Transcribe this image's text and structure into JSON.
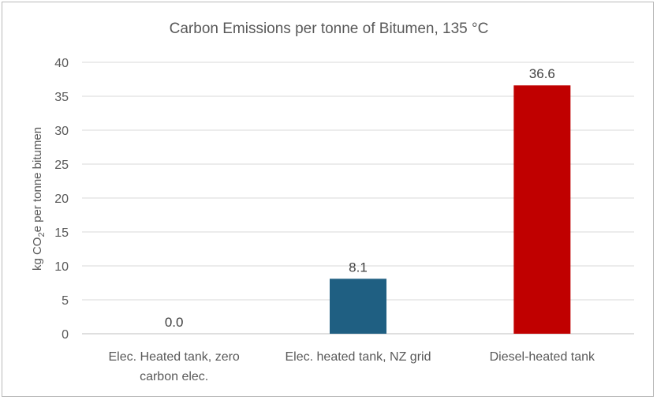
{
  "chart_data": {
    "type": "bar",
    "title": "Carbon Emissions per tonne of Bitumen, 135 °C",
    "ylabel": {
      "pre": "kg CO",
      "sub": "2",
      "post": "e per tonne bitumen"
    },
    "xlabel": "",
    "ylim": [
      0,
      40
    ],
    "yticks": [
      0,
      5,
      10,
      15,
      20,
      25,
      30,
      35,
      40
    ],
    "grid": true,
    "legend": "none",
    "categories": [
      [
        "Elec. Heated tank, zero",
        "carbon elec."
      ],
      [
        "Elec. heated tank, NZ grid"
      ],
      [
        "Diesel-heated tank"
      ]
    ],
    "values": [
      0.0,
      8.1,
      36.6
    ],
    "data_labels": [
      "0.0",
      "8.1",
      "36.6"
    ],
    "colors": [
      "#1f5f82",
      "#1f5f82",
      "#c00000"
    ]
  }
}
